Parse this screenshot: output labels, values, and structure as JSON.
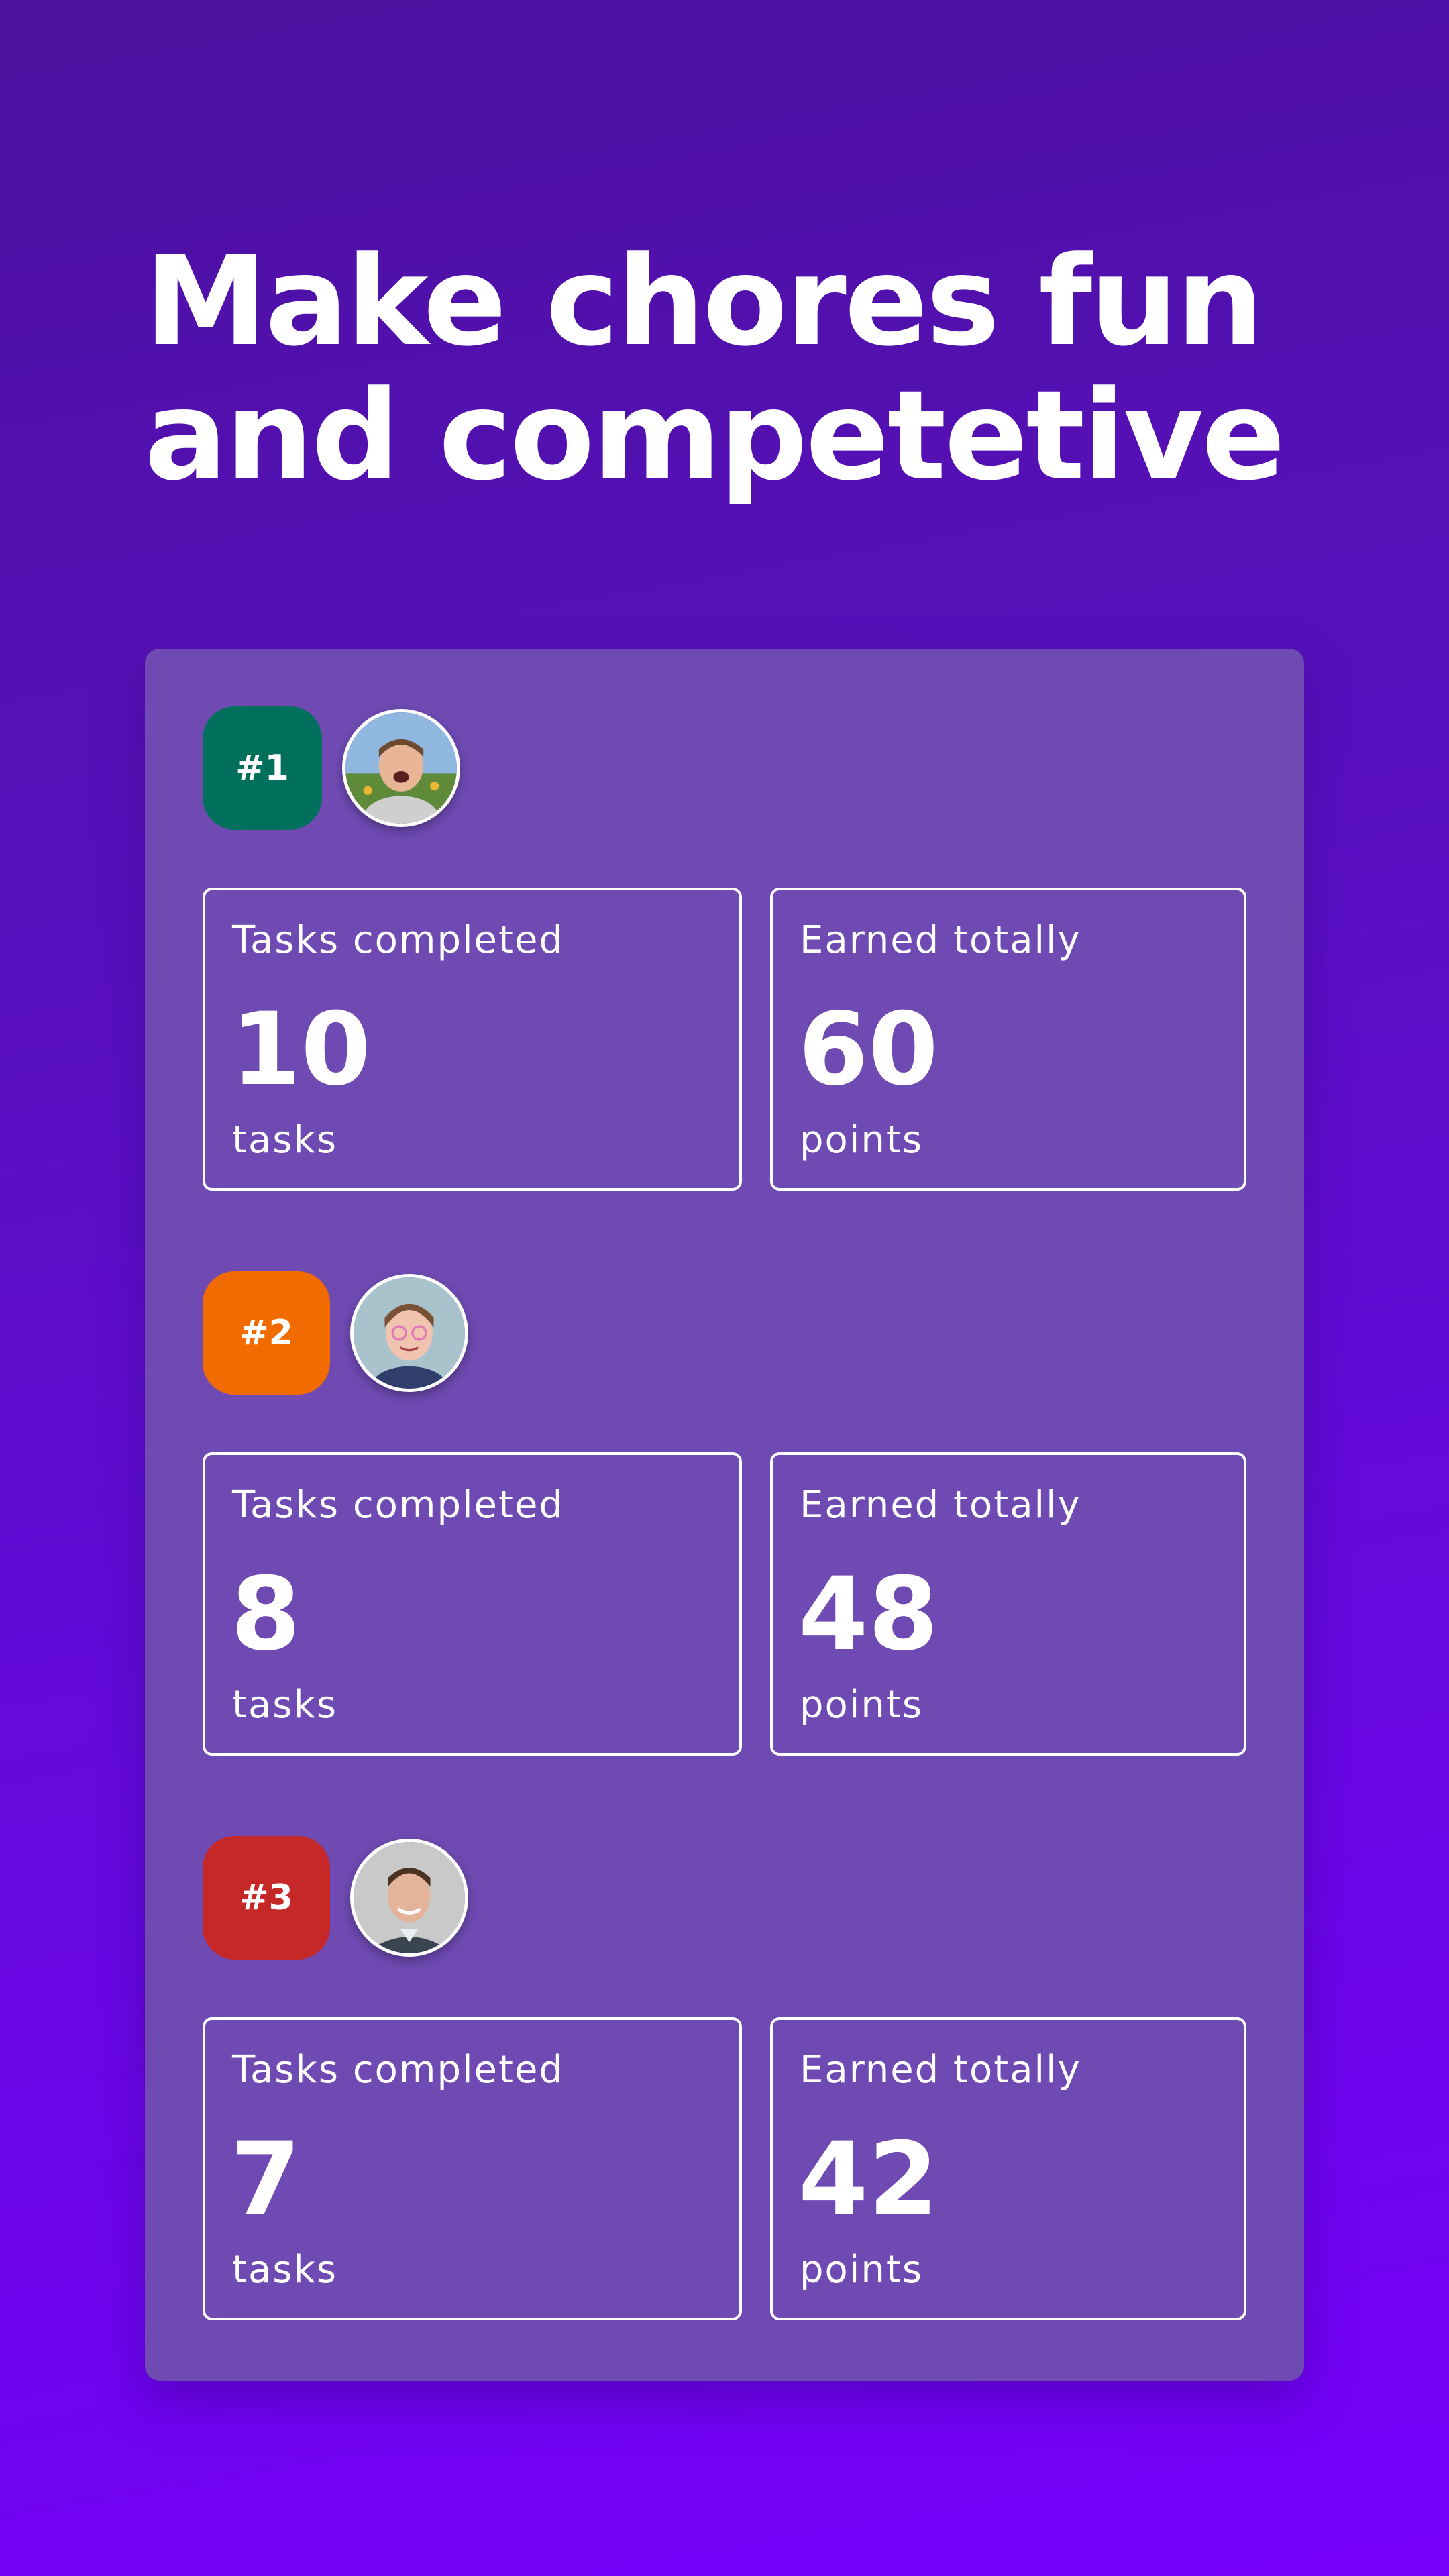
{
  "headline": {
    "line1": "Make chores fun",
    "line2": "and competetive"
  },
  "leaderboard": [
    {
      "rank": "#1",
      "rank_color": "#00705c",
      "avatar_icon": "boy-avatar-icon",
      "tasks_label": "Tasks completed",
      "tasks_value": "10",
      "tasks_unit": "tasks",
      "earned_label": "Earned totally",
      "earned_value": "60",
      "earned_unit": "points"
    },
    {
      "rank": "#2",
      "rank_color": "#f26b00",
      "avatar_icon": "girl-avatar-icon",
      "tasks_label": "Tasks completed",
      "tasks_value": "8",
      "tasks_unit": "tasks",
      "earned_label": "Earned totally",
      "earned_value": "48",
      "earned_unit": "points"
    },
    {
      "rank": "#3",
      "rank_color": "#c62828",
      "avatar_icon": "man-avatar-icon",
      "tasks_label": "Tasks completed",
      "tasks_value": "7",
      "tasks_unit": "tasks",
      "earned_label": "Earned totally",
      "earned_value": "42",
      "earned_unit": "points"
    }
  ],
  "colors": {
    "background_top": "#4c119e",
    "background_bottom": "#7600fb",
    "board": "#6e4ab2"
  }
}
